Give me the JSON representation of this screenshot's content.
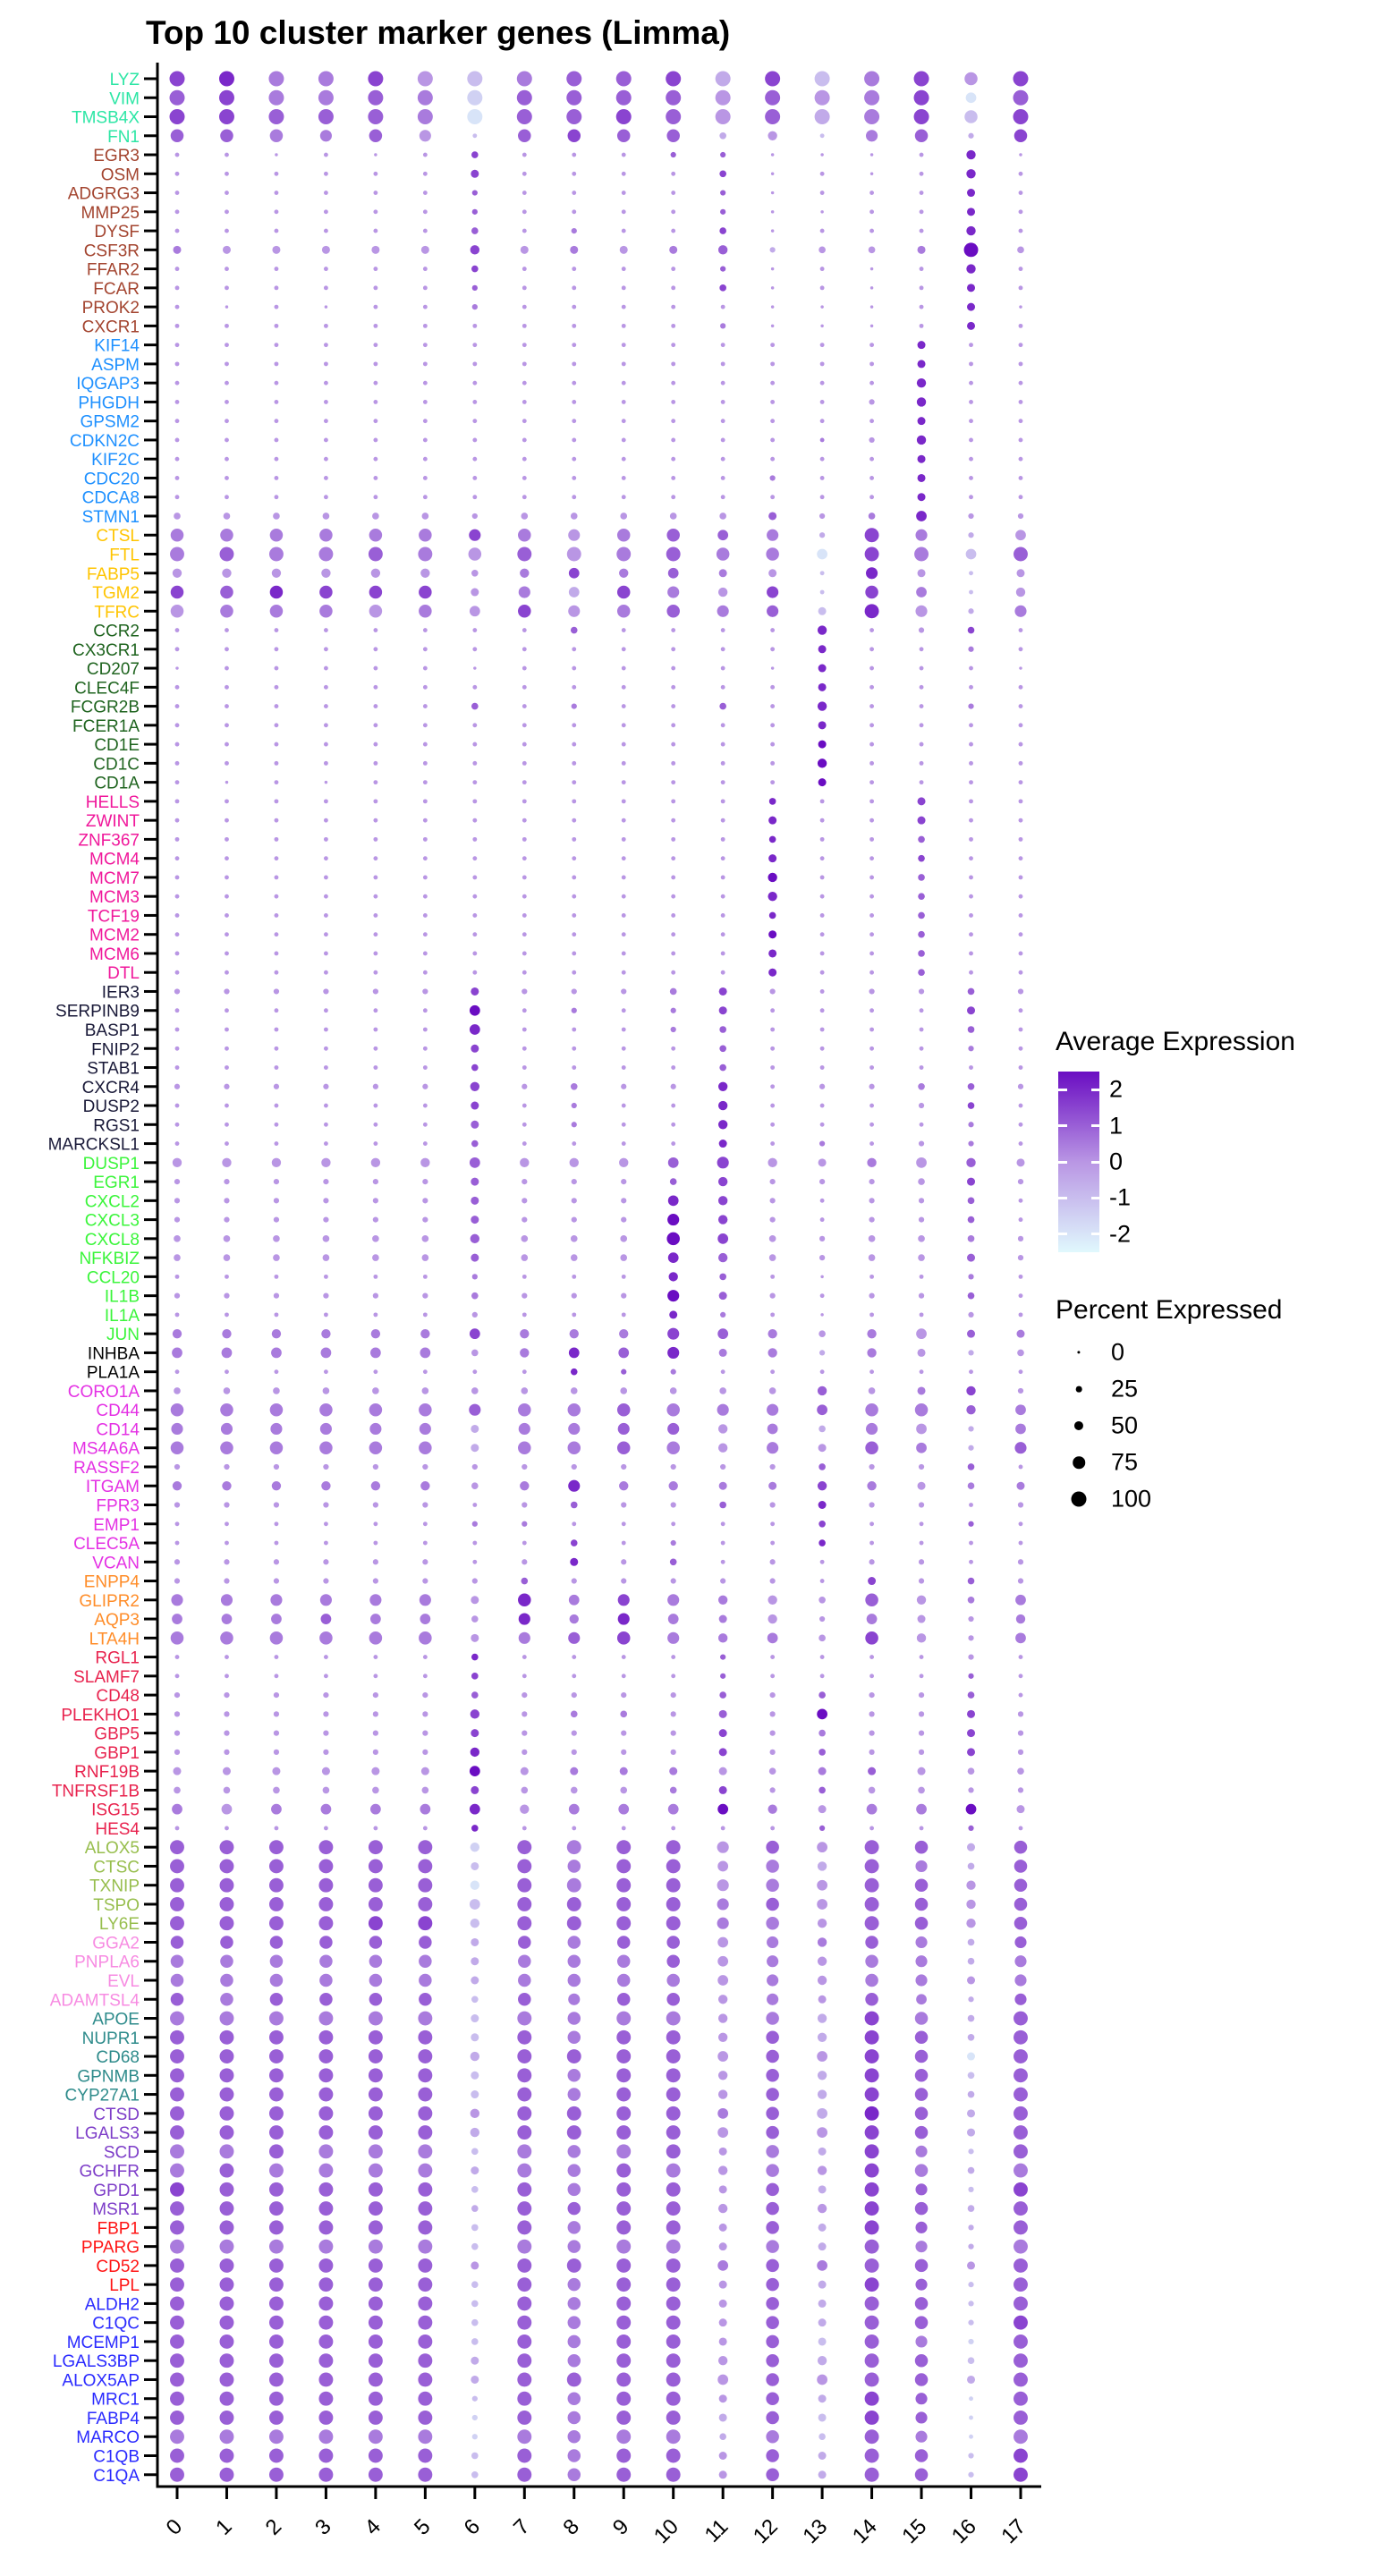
{
  "title": "Top 10 cluster marker genes (Limma)",
  "x_axis": {
    "label_rotation_deg": 45,
    "clusters": [
      "0",
      "1",
      "2",
      "3",
      "4",
      "5",
      "6",
      "7",
      "8",
      "9",
      "10",
      "11",
      "12",
      "13",
      "14",
      "15",
      "16",
      "17"
    ]
  },
  "legend": {
    "avg_expression": {
      "title": "Average Expression",
      "ticks": [
        "2",
        "1",
        "0",
        "-1",
        "-2"
      ],
      "tick_values": [
        2,
        1,
        0,
        -1,
        -2
      ],
      "gradient_top": "#6A0DC2",
      "gradient_mid": "#B996E4",
      "gradient_bottom": "#E0F8FD",
      "range": [
        -2.5,
        2.5
      ]
    },
    "percent_expressed": {
      "title": "Percent Expressed",
      "items": [
        {
          "label": "0",
          "pct": 0
        },
        {
          "label": "25",
          "pct": 25
        },
        {
          "label": "50",
          "pct": 50
        },
        {
          "label": "75",
          "pct": 75
        },
        {
          "label": "100",
          "pct": 100
        }
      ],
      "dot_color": "#000000"
    }
  },
  "cluster_colors": [
    "#2DE6A5",
    "#A3442F",
    "#1E90FF",
    "#FFC400",
    "#1F641F",
    "#F0189B",
    "#191938",
    "#3BF53B",
    "#000000",
    "#E431E4",
    "#FF8D29",
    "#E8234E",
    "#97BE4D",
    "#F78BE2",
    "#2E8B8B",
    "#7D3DC8",
    "#FF1414",
    "#2A2AFF"
  ],
  "chart_data": {
    "type": "dotplot",
    "title": "Top 10 cluster marker genes (Limma)",
    "x": [
      "0",
      "1",
      "2",
      "3",
      "4",
      "5",
      "6",
      "7",
      "8",
      "9",
      "10",
      "11",
      "12",
      "13",
      "14",
      "15",
      "16",
      "17"
    ],
    "encoding": {
      "fields": {
        "n": "gene name",
        "c": "cluster index for label color",
        "p": "percent expressed per cluster, one char per cluster",
        "e": "average expression per cluster, one char per cluster"
      },
      "pct_chars": "'0'=~2%, '1'..'9' = ~digit*10+2 %, 'A'=100%",
      "expr_chars": "a=-2, b=-1.5, c=-1, d=-0.5, e=0, f=0.5, g=1, h=1.5, i=2, j=2.5"
    },
    "genes": [
      {
        "n": "LYZ",
        "c": 0,
        "p": "AAAAAAAAAAAAAAAA8A",
        "e": "hiffhecfgghdhcfheh"
      },
      {
        "n": "VIM",
        "c": 0,
        "p": "AAAAAAAAAAAAAAAA6A",
        "e": "ghffgfbggggegefhag"
      },
      {
        "n": "TMSB4X",
        "c": 0,
        "p": "AAAAAAAAAAAAAAAA8A",
        "e": "hhgggfagghgegdfhch"
      },
      {
        "n": "FN1",
        "c": 0,
        "p": "888787188883517828",
        "e": "ggffgecghggdecfgdh"
      },
      {
        "n": "EGR3",
        "c": 1,
        "p": "110101311122000150",
        "e": "eeeeeeheeeggeeeeie"
      },
      {
        "n": "OSM",
        "c": 1,
        "p": "111111411113010151",
        "e": "eeeeeeheeeeheeeeie"
      },
      {
        "n": "ADGRG3",
        "c": 1,
        "p": "111111211112011141",
        "e": "eeeeeegeeeegeeeeie"
      },
      {
        "n": "MMP25",
        "c": 1,
        "p": "111111211112001141",
        "e": "eeeeeegeeeegeeeeie"
      },
      {
        "n": "DYSF",
        "c": 1,
        "p": "111111312113011151",
        "e": "eeeeeegefeeheeeeie"
      },
      {
        "n": "CSF3R",
        "c": 1,
        "p": "444444544445233493",
        "e": "feeeeehefefgdeefje"
      },
      {
        "n": "FFAR2",
        "c": 1,
        "p": "111111311112010151",
        "e": "eeeeeeheeeegeeeeie"
      },
      {
        "n": "FCAR",
        "c": 1,
        "p": "111111211113010141",
        "e": "eeeeeegeeeeheeeeie"
      },
      {
        "n": "PROK2",
        "c": 1,
        "p": "101011211111000140",
        "e": "eeeeeefeeeeeeeeeie"
      },
      {
        "n": "CXCR1",
        "c": 1,
        "p": "111111111112000141",
        "e": "eeeeeeeeeeefeeeeie"
      },
      {
        "n": "KIF14",
        "c": 2,
        "p": "111111111111111411",
        "e": "eeeeeeeeeeeeeeeiee"
      },
      {
        "n": "ASPM",
        "c": 2,
        "p": "111111111111111411",
        "e": "eeeeeeeeeeeeeeeiee"
      },
      {
        "n": "IQGAP3",
        "c": 2,
        "p": "111111111111111511",
        "e": "eeeeeeeeeeeeeeeiee"
      },
      {
        "n": "PHGDH",
        "c": 2,
        "p": "111111111111112511",
        "e": "eeeeeeeeeeeeeeeiee"
      },
      {
        "n": "GPSM2",
        "c": 2,
        "p": "111111111111111411",
        "e": "eeeeeeeeeeeeeeeiee"
      },
      {
        "n": "CDKN2C",
        "c": 2,
        "p": "111111111111112511",
        "e": "eeeeeeeeeeeeefeiee"
      },
      {
        "n": "KIF2C",
        "c": 2,
        "p": "111111111111111411",
        "e": "eeeeeeeeeeeeeeeiee"
      },
      {
        "n": "CDC20",
        "c": 2,
        "p": "111111111111211411",
        "e": "eeeeeeeeeeeefeeiee"
      },
      {
        "n": "CDCA8",
        "c": 2,
        "p": "111111111111111411",
        "e": "eeeeeeeeeeeeeeeiee"
      },
      {
        "n": "STMN1",
        "c": 2,
        "p": "333333233333423622",
        "e": "eeeeeeeeeeeegefiee"
      },
      {
        "n": "CTSL",
        "c": 3,
        "p": "888888787886729726",
        "e": "ffffffhfefggfdhfde"
      },
      {
        "n": "FTL",
        "c": 3,
        "p": "999999899998869969",
        "e": "fgffgfegefgffahfcg"
      },
      {
        "n": "FABP5",
        "c": 3,
        "p": "555555356564417414",
        "e": "eeeeeeefhfgfeciece"
      },
      {
        "n": "TGM2",
        "c": 3,
        "p": "888888476875718615",
        "e": "hgihhhefdhfehchfce"
      },
      {
        "n": "TFRC",
        "c": 3,
        "p": "888888687887749727",
        "e": "efffefehefgfgciedf"
      },
      {
        "n": "CCR2",
        "c": 4,
        "p": "111111113111151231",
        "e": "eeeeeeeegeeeeieehe"
      },
      {
        "n": "CX3CR1",
        "c": 4,
        "p": "111111111111141121",
        "e": "eeeeeeeeeeeeeieefe"
      },
      {
        "n": "CD207",
        "c": 4,
        "p": "011111011111041110",
        "e": "eeeeeeeeeeeeeieeee"
      },
      {
        "n": "CLEC4F",
        "c": 4,
        "p": "111111111111141111",
        "e": "eeeeeeeeeeeeeieeee"
      },
      {
        "n": "FCGR2B",
        "c": 4,
        "p": "111111312113151121",
        "e": "eeeeeegefeegeieefe"
      },
      {
        "n": "FCER1A",
        "c": 4,
        "p": "111111111111141111",
        "e": "eeeeeeeeeeeeeieeee"
      },
      {
        "n": "CD1E",
        "c": 4,
        "p": "111111111111141111",
        "e": "eeeeeeeeeeeeejeeee"
      },
      {
        "n": "CD1C",
        "c": 4,
        "p": "111111111111151111",
        "e": "eeeeeeeeeeeeejeeee"
      },
      {
        "n": "CD1A",
        "c": 4,
        "p": "101011111111141111",
        "e": "eeeeeeeeeeeeejeeee"
      },
      {
        "n": "HELLS",
        "c": 5,
        "p": "111111111111311411",
        "e": "eeeeeeeeeeeeieehee"
      },
      {
        "n": "ZWINT",
        "c": 5,
        "p": "111111111111411411",
        "e": "eeeeeeeeeeeeieehee"
      },
      {
        "n": "ZNF367",
        "c": 5,
        "p": "111111111111311311",
        "e": "eeeeeeeeeeeeieegee"
      },
      {
        "n": "MCM4",
        "c": 5,
        "p": "111111111111411311",
        "e": "eeeeeeeeeeeeieehee"
      },
      {
        "n": "MCM7",
        "c": 5,
        "p": "111111111111511311",
        "e": "eeeeeeeeeeeejeegee"
      },
      {
        "n": "MCM3",
        "c": 5,
        "p": "111111111111511311",
        "e": "eeeeeeeeeeeeieegee"
      },
      {
        "n": "TCF19",
        "c": 5,
        "p": "111111111111311311",
        "e": "eeeeeeeeeeeeieegee"
      },
      {
        "n": "MCM2",
        "c": 5,
        "p": "111111111111411311",
        "e": "eeeeeeeeeeeejeegee"
      },
      {
        "n": "MCM6",
        "c": 5,
        "p": "111111111111411311",
        "e": "eeeeeeeeeeeeieegee"
      },
      {
        "n": "DTL",
        "c": 5,
        "p": "111111111111411311",
        "e": "eeeeeeeeeeeeieegee"
      },
      {
        "n": "IER3",
        "c": 6,
        "p": "222222422234212232",
        "e": "eeeeeeheeefheeeege"
      },
      {
        "n": "SERPINB9",
        "c": 6,
        "p": "111111612124111141",
        "e": "eeeeeejefefheeeehe"
      },
      {
        "n": "BASP1",
        "c": 6,
        "p": "111111611123111131",
        "e": "eeeeeeieeefgeeeege"
      },
      {
        "n": "FNIP2",
        "c": 6,
        "p": "111111411113111121",
        "e": "eeeeeeheeeegeeeefe"
      },
      {
        "n": "STAB1",
        "c": 6,
        "p": "111111311113111111",
        "e": "eeeeeeheeeegeeeeee"
      },
      {
        "n": "CXCR4",
        "c": 6,
        "p": "222222523225122332",
        "e": "eeeeeehefeeieeefge"
      },
      {
        "n": "DUSP2",
        "c": 6,
        "p": "111111412115111231",
        "e": "eeeeeehefeeieeeehe"
      },
      {
        "n": "RGS1",
        "c": 6,
        "p": "111111412115111121",
        "e": "eeeeeegefeeieeeefe"
      },
      {
        "n": "MARCKSL1",
        "c": 6,
        "p": "111111311114121221",
        "e": "eeeeeegeeeeiefeefe"
      },
      {
        "n": "DUSP1",
        "c": 7,
        "p": "555555655567545654",
        "e": "eeeeeegeeegheefege"
      },
      {
        "n": "EGR1",
        "c": 7,
        "p": "222222422235222342",
        "e": "eeeeeegeeegheeeehe"
      },
      {
        "n": "CXCL2",
        "c": 7,
        "p": "222222422265212231",
        "e": "eeeeeegeeeiheeeege"
      },
      {
        "n": "CXCL3",
        "c": 7,
        "p": "222222422275212231",
        "e": "eeeeeegeeejheeeege"
      },
      {
        "n": "CXCL8",
        "c": 7,
        "p": "333333533386323332",
        "e": "eeeeeegeeejheeeefe"
      },
      {
        "n": "NFKBIZ",
        "c": 7,
        "p": "333333433365323342",
        "e": "eeeeeegeeeigeeeege"
      },
      {
        "n": "CCL20",
        "c": 7,
        "p": "111111211153101121",
        "e": "eeeeeefeeeigeeeefe"
      },
      {
        "n": "IL1B",
        "c": 7,
        "p": "222222322274212231",
        "e": "eeeeeefeeejgeeeege"
      },
      {
        "n": "IL1A",
        "c": 7,
        "p": "111111211142101121",
        "e": "eeeeeeeeeeifeeeeee"
      },
      {
        "n": "JUN",
        "c": 7,
        "p": "555555655576535644",
        "e": "ffffffhfffhgfefegf"
      },
      {
        "n": "INHBA",
        "c": 8,
        "p": "666666356674525423",
        "e": "ffffffefigiffdfede"
      },
      {
        "n": "PLA1A",
        "c": 8,
        "p": "111111113221111111",
        "e": "eeeeeeeeigfeeeeeee"
      },
      {
        "n": "CORO1A",
        "c": 9,
        "p": "333333333333353452",
        "e": "eeeeeeeeeeeeegefhe"
      },
      {
        "n": "CD44",
        "c": 9,
        "p": "888888788887768856",
        "e": "ffffffgffgfffgffgf"
      },
      {
        "n": "CD14",
        "c": 9,
        "p": "777777477775637626",
        "e": "ffffffdffggefdfedf"
      },
      {
        "n": "MS4A6A",
        "c": 9,
        "p": "888888488885748627",
        "e": "ffffffdffgfefegfdg"
      },
      {
        "n": "RASSF2",
        "c": 9,
        "p": "222222222222232231",
        "e": "eeeeeeeeeeeeegeege"
      },
      {
        "n": "ITGAM",
        "c": 9,
        "p": "555555357554455434",
        "e": "ffffffefiffffhfeff"
      },
      {
        "n": "FPR3",
        "c": 9,
        "p": "222222123223242212",
        "e": "eeeeeeeegeegeieeee"
      },
      {
        "n": "EMP1",
        "c": 9,
        "p": "111111221111131121",
        "e": "eeeeeeffeeeeeheege"
      },
      {
        "n": "CLEC5A",
        "c": 9,
        "p": "111111113121131111",
        "e": "eeeeeeeehefeeieeee"
      },
      {
        "n": "VCAN",
        "c": 9,
        "p": "222222124231212212",
        "e": "eeeeeeeeiegeeeeeee"
      },
      {
        "n": "ENPP4",
        "c": 10,
        "p": "222222232222214232",
        "e": "eeeeeeegeeeeeehege"
      },
      {
        "n": "GLIPR2",
        "c": 10,
        "p": "777777486775538536",
        "e": "ffffffeifhffeegeff"
      },
      {
        "n": "AQP3",
        "c": 10,
        "p": "666666375764526425",
        "e": "fffgffeififfeefeef"
      },
      {
        "n": "LTA4H",
        "c": 10,
        "p": "888888477875638526",
        "e": "ffffffefghfffeheef"
      },
      {
        "n": "RGL1",
        "c": 11,
        "p": "111111311112111121",
        "e": "eeeeeeieeeegeeeeee"
      },
      {
        "n": "SLAMF7",
        "c": 11,
        "p": "111111311112111121",
        "e": "eeeeeeheeeegeeeege"
      },
      {
        "n": "CD48",
        "c": 11,
        "p": "222222322223232231",
        "e": "eeeeeegeeeegegeege"
      },
      {
        "n": "PLEKHO1",
        "c": 11,
        "p": "222222523324262242",
        "e": "eeeeeeheffegejeehe"
      },
      {
        "n": "GBP5",
        "c": 11,
        "p": "222222422224232242",
        "e": "eeeeeeheeeehefeehe"
      },
      {
        "n": "GBP1",
        "c": 11,
        "p": "222222522224232242",
        "e": "eeeeeeieeeehegeehe"
      },
      {
        "n": "RNF19B",
        "c": 11,
        "p": "444444644444344433",
        "e": "eeeeeejefffeefgeee"
      },
      {
        "n": "TNFRSF1B",
        "c": 11,
        "p": "333333433334233322",
        "e": "eeeeeeheeefhegeeee"
      },
      {
        "n": "ISG15",
        "c": 11,
        "p": "666666656666546664",
        "e": "feffffiefffjfeffje"
      },
      {
        "n": "HES4",
        "c": 11,
        "p": "111111311111121121",
        "e": "eeeeeeieeeeeegeege"
      },
      {
        "n": "ALOX5",
        "c": 12,
        "p": "999999599997869848",
        "e": "ggggggbgfggegeggdg"
      },
      {
        "n": "CTSC",
        "c": 12,
        "p": "999999498996859738",
        "e": "ggggggcgfggefdgfdg"
      },
      {
        "n": "TXNIP",
        "c": 12,
        "p": "999999599997869858",
        "e": "ggggggagfggefeggeg"
      },
      {
        "n": "TSPO",
        "c": 12,
        "p": "999999699997869858",
        "e": "ggggggcggggfgeggeg"
      },
      {
        "n": "LY6E",
        "c": 12,
        "p": "999999599997859858",
        "e": "gggghhcggggffeggeg"
      },
      {
        "n": "GGA2",
        "c": 13,
        "p": "888888488886758737",
        "e": "ggggggdgfggeffgfdg"
      },
      {
        "n": "PNPLA6",
        "c": 13,
        "p": "888888488886758737",
        "e": "ffffffdfffgefeffdf"
      },
      {
        "n": "EVL",
        "c": 13,
        "p": "888888488886758747",
        "e": "ffffffdffffefeffef"
      },
      {
        "n": "ADAMTSL4",
        "c": 13,
        "p": "888888387885748627",
        "e": "gfggggcgfggefegfdg"
      },
      {
        "n": "APOE",
        "c": 14,
        "p": "999999498995859839",
        "e": "ffffffcffffefdhfdg"
      },
      {
        "n": "NUPR1",
        "c": 14,
        "p": "999999498995859839",
        "e": "ggggggcgfggegdhgdg"
      },
      {
        "n": "CD68",
        "c": 14,
        "p": "999999599996869849",
        "e": "ggggggdggggegehgag"
      },
      {
        "n": "GPNMB",
        "c": 14,
        "p": "999999498995859839",
        "e": "ggggggcgfggegdhgcg"
      },
      {
        "n": "CYP27A1",
        "c": 14,
        "p": "999999498995859839",
        "e": "ggggggcgfggegdhgdg"
      },
      {
        "n": "CTSD",
        "c": 15,
        "p": "999999599996869849",
        "e": "ggggggeggggfgdigdg"
      },
      {
        "n": "LGALS3",
        "c": 15,
        "p": "999999599996869849",
        "e": "ggggggdggggegehgdg"
      },
      {
        "n": "SCD",
        "c": 15,
        "p": "999999398994849729",
        "e": "ffgfffcfffgefdhfcg"
      },
      {
        "n": "GCHFR",
        "c": 15,
        "p": "999999498995859839",
        "e": "fgffffdffgfefehfdf"
      },
      {
        "n": "GPD1",
        "c": 15,
        "p": "999999398994849729",
        "e": "hgggggcgfggegdhgch"
      },
      {
        "n": "MSR1",
        "c": 15,
        "p": "999999398995859839",
        "e": "ggggggdggggegehgdg"
      },
      {
        "n": "FBP1",
        "c": 16,
        "p": "999999398994849729",
        "e": "ggggggcgfggegdhgdg"
      },
      {
        "n": "PPARG",
        "c": 16,
        "p": "999999398994849729",
        "e": "ffffffcffffefdgfdf"
      },
      {
        "n": "CD52",
        "c": 16,
        "p": "999999499996869849",
        "e": "ggggggeggggfgfggeg"
      },
      {
        "n": "LPL",
        "c": 16,
        "p": "999999398994849729",
        "e": "ggggggcgfggegdhgcg"
      },
      {
        "n": "ALDH2",
        "c": 17,
        "p": "999999398994849829",
        "e": "ggggggcgfggegdggcg"
      },
      {
        "n": "C1QC",
        "c": 17,
        "p": "999999398994849829",
        "e": "ggggggcgfggegdggch"
      },
      {
        "n": "MCEMP1",
        "c": 17,
        "p": "999999398994849729",
        "e": "ggggggcgfggegcgfbg"
      },
      {
        "n": "LGALS3BP",
        "c": 17,
        "p": "999999498995859839",
        "e": "ggggggdgfggegdggcg"
      },
      {
        "n": "ALOX5AP",
        "c": 17,
        "p": "999999499996869849",
        "e": "ggggggdggggegeggdg"
      },
      {
        "n": "MRC1",
        "c": 17,
        "p": "999999298994849719",
        "e": "ggggggcgfggegdhgbg"
      },
      {
        "n": "FABP4",
        "c": 17,
        "p": "999999298994849719",
        "e": "ggggggbgfggdgchgbg"
      },
      {
        "n": "MARCO",
        "c": 17,
        "p": "999999298993839719",
        "e": "ffffffbffffdfcgfbf"
      },
      {
        "n": "C1QB",
        "c": 17,
        "p": "999999398994849829",
        "e": "ggggggcgfggegdggch"
      },
      {
        "n": "C1QA",
        "c": 17,
        "p": "999999398994849829",
        "e": "ggggggcgfggegdggch"
      }
    ],
    "grid": false,
    "legend_position": "right"
  }
}
